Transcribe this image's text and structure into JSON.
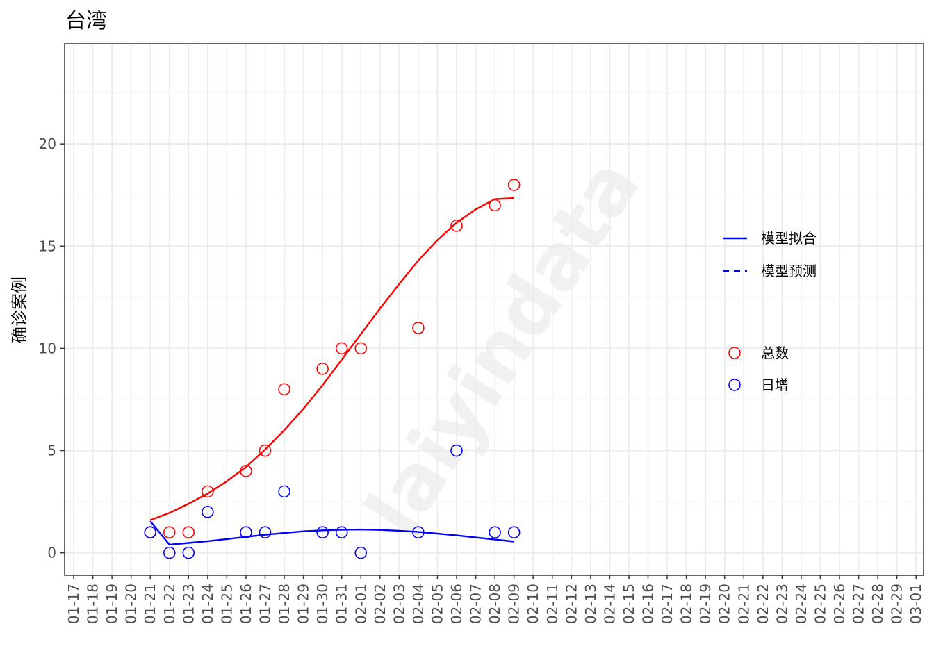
{
  "chart_data": {
    "type": "scatter",
    "title": "台湾",
    "ylabel": "确诊案例",
    "xlabel": "",
    "watermark": "laiyindata",
    "ylim": [
      -1.1,
      24.9
    ],
    "y_ticks": [
      0,
      5,
      10,
      15,
      20
    ],
    "x_labels": [
      "01-17",
      "01-18",
      "01-19",
      "01-20",
      "01-21",
      "01-22",
      "01-23",
      "01-24",
      "01-25",
      "01-26",
      "01-27",
      "01-28",
      "01-29",
      "01-30",
      "01-31",
      "02-01",
      "02-02",
      "02-03",
      "02-04",
      "02-05",
      "02-06",
      "02-07",
      "02-08",
      "02-09",
      "02-10",
      "02-11",
      "02-12",
      "02-13",
      "02-14",
      "02-15",
      "02-16",
      "02-17",
      "02-18",
      "02-19",
      "02-20",
      "02-21",
      "02-22",
      "02-23",
      "02-24",
      "02-25",
      "02-26",
      "02-27",
      "02-28",
      "02-29",
      "03-01"
    ],
    "grid": true,
    "legend": {
      "position": "right",
      "lines": [
        {
          "label": "模型拟合",
          "style": "solid"
        },
        {
          "label": "模型预测",
          "style": "dashed"
        }
      ],
      "points": [
        {
          "label": "总数",
          "color": "#ff0000"
        },
        {
          "label": "日增",
          "color": "#0000ff"
        }
      ]
    },
    "series": [
      {
        "name": "总数",
        "kind": "points",
        "color": "#ff0000",
        "points": [
          [
            "01-21",
            1
          ],
          [
            "01-22",
            1
          ],
          [
            "01-23",
            1
          ],
          [
            "01-24",
            3
          ],
          [
            "01-26",
            4
          ],
          [
            "01-27",
            5
          ],
          [
            "01-28",
            8
          ],
          [
            "01-30",
            9
          ],
          [
            "01-31",
            10
          ],
          [
            "02-01",
            10
          ],
          [
            "02-04",
            11
          ],
          [
            "02-06",
            16
          ],
          [
            "02-08",
            17
          ],
          [
            "02-09",
            18
          ]
        ]
      },
      {
        "name": "日增",
        "kind": "points",
        "color": "#0000ff",
        "points": [
          [
            "01-21",
            1
          ],
          [
            "01-22",
            0
          ],
          [
            "01-23",
            0
          ],
          [
            "01-24",
            2
          ],
          [
            "01-26",
            1
          ],
          [
            "01-27",
            1
          ],
          [
            "01-28",
            3
          ],
          [
            "01-30",
            1
          ],
          [
            "01-31",
            1
          ],
          [
            "02-01",
            0
          ],
          [
            "02-04",
            1
          ],
          [
            "02-06",
            5
          ],
          [
            "02-08",
            1
          ],
          [
            "02-09",
            1
          ]
        ]
      },
      {
        "name": "模型拟合",
        "kind": "line",
        "color": "#ff0000",
        "points": [
          [
            "01-21",
            1.6
          ],
          [
            "01-22",
            1.95
          ],
          [
            "01-23",
            2.4
          ],
          [
            "01-24",
            2.9
          ],
          [
            "01-25",
            3.5
          ],
          [
            "01-26",
            4.2
          ],
          [
            "01-27",
            5.05
          ],
          [
            "01-28",
            6.0
          ],
          [
            "01-29",
            7.05
          ],
          [
            "01-30",
            8.2
          ],
          [
            "01-31",
            9.45
          ],
          [
            "02-01",
            10.7
          ],
          [
            "02-02",
            11.95
          ],
          [
            "02-03",
            13.15
          ],
          [
            "02-04",
            14.3
          ],
          [
            "02-05",
            15.3
          ],
          [
            "02-06",
            16.15
          ],
          [
            "02-07",
            16.8
          ],
          [
            "02-08",
            17.3
          ],
          [
            "02-09",
            17.35
          ]
        ]
      },
      {
        "name": "模型拟合",
        "kind": "line",
        "color": "#0000ff",
        "points": [
          [
            "01-21",
            1.55
          ],
          [
            "01-22",
            0.4
          ],
          [
            "01-23",
            0.48
          ],
          [
            "01-24",
            0.57
          ],
          [
            "01-25",
            0.67
          ],
          [
            "01-26",
            0.78
          ],
          [
            "01-27",
            0.88
          ],
          [
            "01-28",
            0.97
          ],
          [
            "01-29",
            1.05
          ],
          [
            "01-30",
            1.1
          ],
          [
            "01-31",
            1.13
          ],
          [
            "02-01",
            1.14
          ],
          [
            "02-02",
            1.12
          ],
          [
            "02-03",
            1.08
          ],
          [
            "02-04",
            1.02
          ],
          [
            "02-05",
            0.94
          ],
          [
            "02-06",
            0.85
          ],
          [
            "02-07",
            0.75
          ],
          [
            "02-08",
            0.65
          ],
          [
            "02-09",
            0.55
          ]
        ]
      }
    ]
  }
}
